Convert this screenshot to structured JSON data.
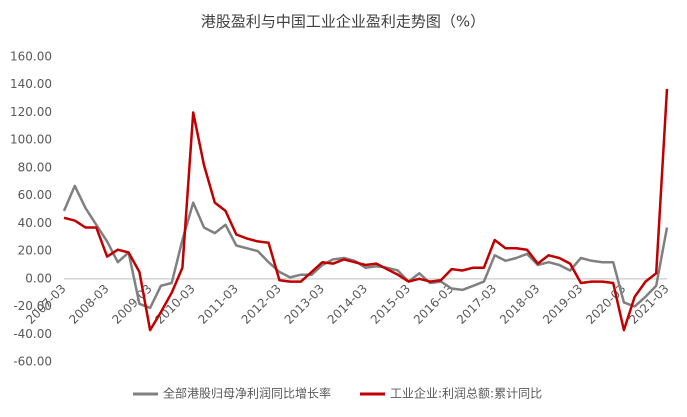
{
  "chart_data": {
    "type": "line",
    "title": "港股盈利与中国工业企业盈利走势图（%）",
    "categories": [
      "2007-03",
      null,
      null,
      null,
      "2008-03",
      null,
      null,
      null,
      "2009-03",
      null,
      null,
      null,
      "2010-03",
      null,
      null,
      null,
      "2011-03",
      null,
      null,
      null,
      "2012-03",
      null,
      null,
      null,
      "2013-03",
      null,
      null,
      null,
      "2014-03",
      null,
      null,
      null,
      "2015-03",
      null,
      null,
      null,
      "2016-03",
      null,
      null,
      null,
      "2017-03",
      null,
      null,
      null,
      "2018-03",
      null,
      null,
      null,
      "2019-03",
      null,
      null,
      null,
      "2020-03",
      null,
      null,
      null,
      "2021-03"
    ],
    "series": [
      {
        "name": "全部港股归母净利润同比增长率",
        "color": "#808080",
        "values": [
          49,
          67,
          51,
          39,
          27,
          12,
          19,
          -18,
          -21,
          -5,
          -3,
          28,
          55,
          37,
          33,
          39,
          24,
          22,
          20,
          12,
          5,
          1,
          3,
          3,
          10,
          14,
          15,
          13,
          8,
          9,
          8,
          6,
          -2,
          4,
          -3,
          -2,
          -7,
          -8,
          -5,
          -2,
          17,
          13,
          15,
          18,
          10,
          12,
          10,
          6,
          15,
          13,
          12,
          12,
          -17,
          -20,
          -13,
          -5,
          37
        ]
      },
      {
        "name": "工业企业:利润总额:累计同比",
        "color": "#c00000",
        "values": [
          44,
          42,
          37,
          37,
          16,
          21,
          19,
          5,
          -37,
          -24,
          -10,
          8,
          120,
          82,
          55,
          49,
          32,
          29,
          27,
          26,
          -1,
          -2,
          -2,
          5,
          12,
          11,
          14,
          12,
          10,
          11,
          7,
          3,
          -2,
          0,
          -2,
          -1,
          7,
          6,
          8,
          8,
          28,
          22,
          22,
          21,
          11,
          17,
          15,
          11,
          -3,
          -2,
          -2,
          -3,
          -37,
          -13,
          -2,
          4,
          137
        ]
      }
    ],
    "ylim": [
      -60,
      160
    ],
    "yticks": [
      {
        "value": -60,
        "label": "-60.00"
      },
      {
        "value": -40,
        "label": "-40.00"
      },
      {
        "value": -20,
        "label": "-20.00"
      },
      {
        "value": 0,
        "label": "0.00"
      },
      {
        "value": 20,
        "label": "20.00"
      },
      {
        "value": 40,
        "label": "40.00"
      },
      {
        "value": 60,
        "label": "60.00"
      },
      {
        "value": 80,
        "label": "80.00"
      },
      {
        "value": 100,
        "label": "100.00"
      },
      {
        "value": 120,
        "label": "120.00"
      },
      {
        "value": 140,
        "label": "140.00"
      },
      {
        "value": 160,
        "label": "160.00"
      }
    ],
    "grid": false,
    "legend": "bottom"
  }
}
